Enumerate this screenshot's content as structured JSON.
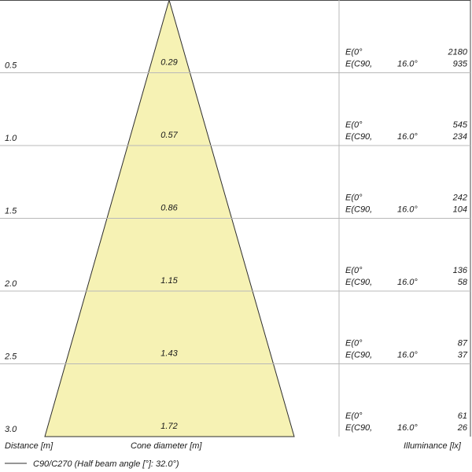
{
  "colors": {
    "cone_fill": "#f6f2b4",
    "cone_stroke": "#2e2e2e",
    "grid": "#b8b8b8",
    "text": "#1a1a1a"
  },
  "footer": {
    "distance_label": "Distance [m]",
    "cone_label": "Cone diameter [m]",
    "illuminance_label": "Illuminance [lx]",
    "legend_label": "C90/C270 (Half beam angle [°]: 32.0°)"
  },
  "rows": [
    {
      "distance": "0.5",
      "diameter": "0.29",
      "e0_label": "E(0°",
      "e90_label": "E(C90,",
      "angle": "16.0°",
      "e0_value": "2180",
      "e90_value": "935"
    },
    {
      "distance": "1.0",
      "diameter": "0.57",
      "e0_label": "E(0°",
      "e90_label": "E(C90,",
      "angle": "16.0°",
      "e0_value": "545",
      "e90_value": "234"
    },
    {
      "distance": "1.5",
      "diameter": "0.86",
      "e0_label": "E(0°",
      "e90_label": "E(C90,",
      "angle": "16.0°",
      "e0_value": "242",
      "e90_value": "104"
    },
    {
      "distance": "2.0",
      "diameter": "1.15",
      "e0_label": "E(0°",
      "e90_label": "E(C90,",
      "angle": "16.0°",
      "e0_value": "136",
      "e90_value": "58"
    },
    {
      "distance": "2.5",
      "diameter": "1.43",
      "e0_label": "E(0°",
      "e90_label": "E(C90,",
      "angle": "16.0°",
      "e0_value": "87",
      "e90_value": "37"
    },
    {
      "distance": "3.0",
      "diameter": "1.72",
      "e0_label": "E(0°",
      "e90_label": "E(C90,",
      "angle": "16.0°",
      "e0_value": "61",
      "e90_value": "26"
    }
  ]
}
